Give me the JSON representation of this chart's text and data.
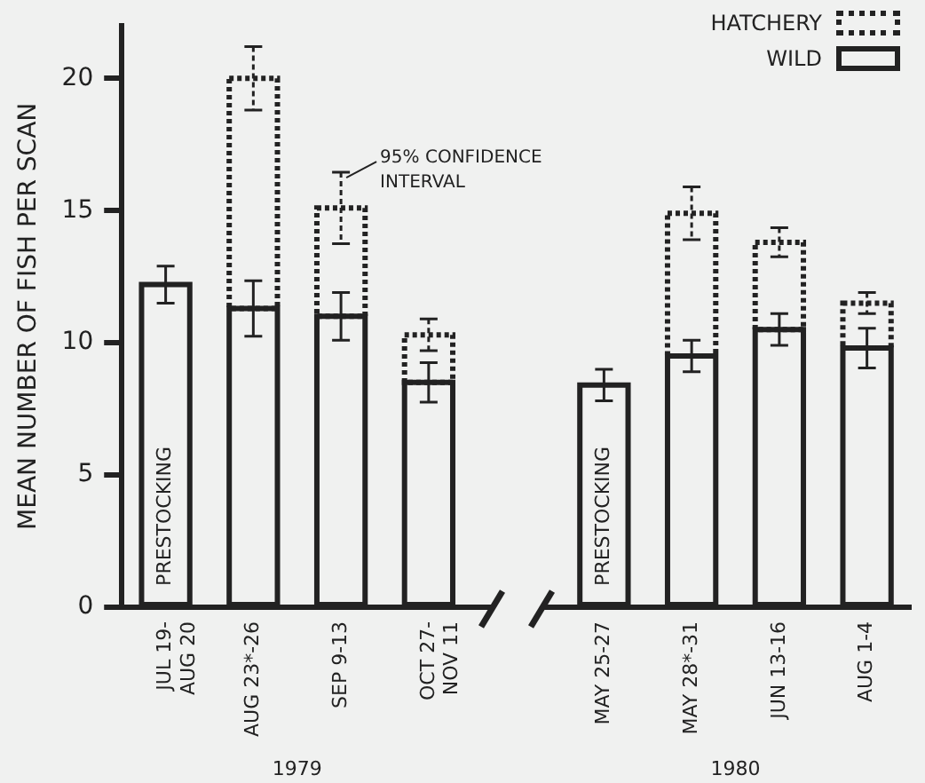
{
  "chart_data": {
    "type": "bar",
    "stacked": true,
    "ylabel": "MEAN NUMBER OF FISH PER SCAN",
    "categories": [
      "JUL 19-\nAUG 20",
      "AUG 23*-26",
      "SEP 9-13",
      "OCT 27-\nNOV 11",
      null,
      "MAY 25-27",
      "MAY 28*-31",
      "JUN 13-16",
      "AUG 1-4"
    ],
    "series": [
      {
        "name": "WILD",
        "color": "#222222",
        "line_style": "solid",
        "values": [
          12.2,
          11.3,
          11.0,
          8.5,
          null,
          8.4,
          9.5,
          10.5,
          9.8
        ],
        "errors": [
          0.7,
          1.05,
          0.9,
          0.75,
          null,
          0.6,
          0.6,
          0.6,
          0.75
        ]
      },
      {
        "name": "HATCHERY",
        "color": "#222222",
        "line_style": "dotted",
        "values": [
          null,
          8.7,
          4.1,
          1.8,
          null,
          null,
          5.4,
          3.3,
          1.7
        ],
        "errors": [
          null,
          1.2,
          1.35,
          0.6,
          null,
          null,
          1.0,
          0.55,
          0.4
        ]
      }
    ],
    "ylim": [
      0,
      22
    ],
    "yticks": [
      0,
      5,
      10,
      15,
      20
    ],
    "grid": false,
    "legend": "top right",
    "annotations": [
      "PRESTOCKING",
      "PRESTOCKING",
      {
        "text": "95% CONFIDENCE\nINTERVAL",
        "x": "SEP 9-13",
        "y": 16.45
      },
      "1979",
      "1980"
    ]
  }
}
